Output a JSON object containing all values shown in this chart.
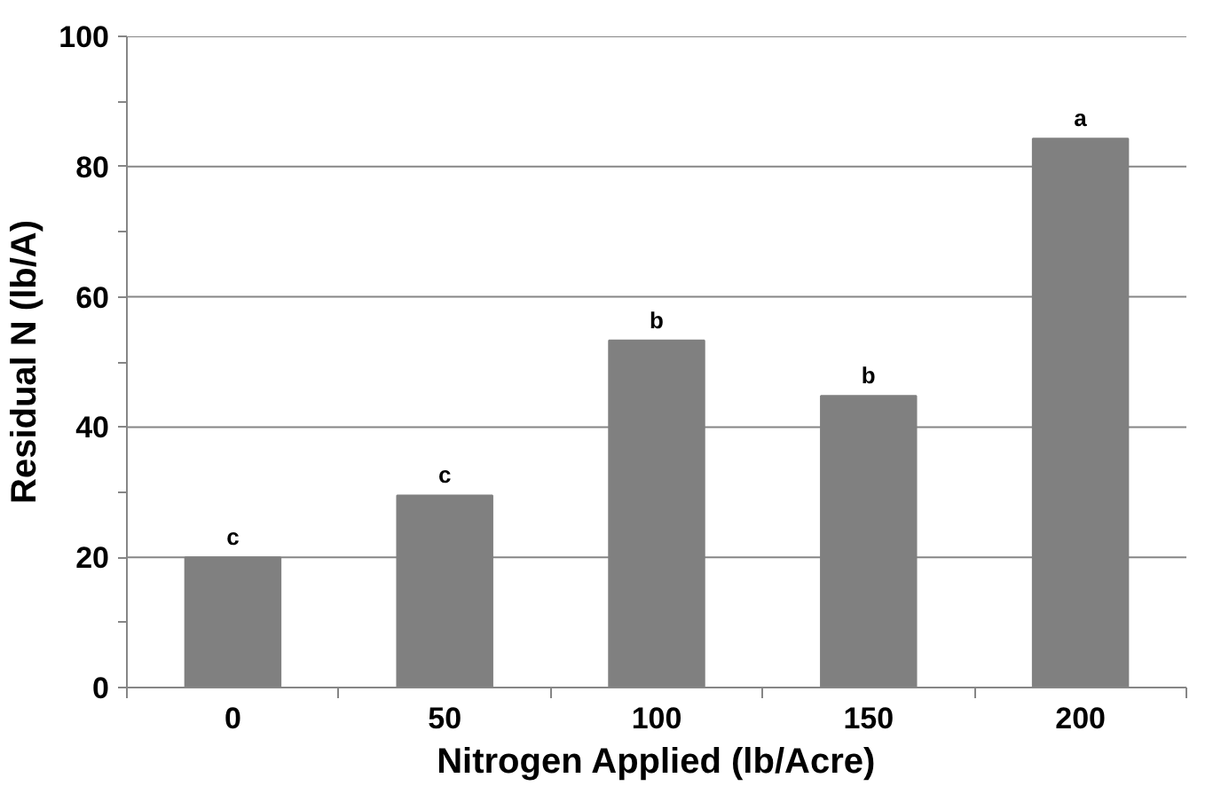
{
  "chart_data": {
    "type": "bar",
    "xlabel": "Nitrogen Applied (lb/Acre)",
    "ylabel": "Residual N (lb/A)",
    "categories": [
      "0",
      "50",
      "100",
      "150",
      "200"
    ],
    "values": [
      20,
      29.5,
      53.3,
      44.8,
      84.3
    ],
    "color": "#808080",
    "ylim": [
      0,
      100
    ],
    "yticks": [
      0,
      {
        "value": 10,
        "label": null
      },
      20,
      {
        "value": 30,
        "label": null
      },
      40,
      {
        "value": 50,
        "label": null
      },
      60,
      {
        "value": 70,
        "label": null
      },
      80,
      {
        "value": 90,
        "label": null
      },
      100
    ],
    "grid": "y",
    "annotations": [
      {
        "text": "c",
        "x": "0",
        "y": 20
      },
      {
        "text": "c",
        "x": "50",
        "y": 29.5
      },
      {
        "text": "b",
        "x": "100",
        "y": 53.3
      },
      {
        "text": "b",
        "x": "150",
        "y": 44.8
      },
      {
        "text": "a",
        "x": "200",
        "y": 84.3
      }
    ]
  }
}
